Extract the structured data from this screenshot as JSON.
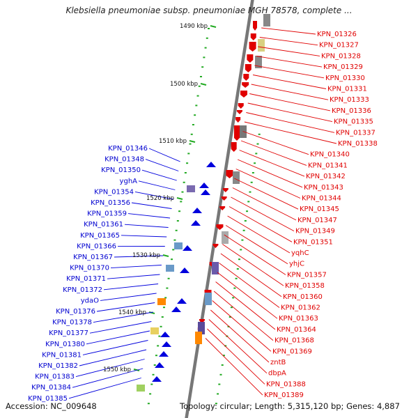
{
  "title": "Klebsiella pneumoniae subsp. pneumoniae MGH 78578, complete ...",
  "footer": {
    "accession": "Accession: NC_009648",
    "summary": "Topology: circular; Length: 5,315,120 bp; Genes: 4,887"
  },
  "colors": {
    "forward": "#e00000",
    "reverse": "#0000dd",
    "tick": "#22aa22",
    "backbone": "#777777"
  },
  "scale_labels": [
    "1490 kbp",
    "1500 kbp",
    "1510 kbp",
    "1520 kbp",
    "1530 kbp",
    "1540 kbp",
    "1550 kbp"
  ],
  "right_labels": [
    "KPN_01326",
    "KPN_01327",
    "KPN_01328",
    "KPN_01329",
    "KPN_01330",
    "KPN_01331",
    "KPN_01333",
    "KPN_01336",
    "KPN_01335",
    "KPN_01337",
    "KPN_01338",
    "KPN_01340",
    "KPN_01341",
    "KPN_01342",
    "KPN_01343",
    "KPN_01344",
    "KPN_01345",
    "KPN_01347",
    "KPN_01349",
    "KPN_01351",
    "yqhC",
    "yhjC",
    "KPN_01357",
    "KPN_01358",
    "KPN_01360",
    "KPN_01362",
    "KPN_01363",
    "KPN_01364",
    "KPN_01368",
    "KPN_01369",
    "zntB",
    "dbpA",
    "KPN_01388",
    "KPN_01389"
  ],
  "left_labels": [
    "KPN_01346",
    "KPN_01348",
    "KPN_01350",
    "yghA",
    "KPN_01354",
    "KPN_01356",
    "KPN_01359",
    "KPN_01361",
    "KPN_01365",
    "KPN_01366",
    "KPN_01367",
    "KPN_01370",
    "KPN_01371",
    "KPN_01372",
    "ydaO",
    "KPN_01376",
    "KPN_01378",
    "KPN_01377",
    "KPN_01380",
    "KPN_01381",
    "KPN_01382",
    "KPN_01383",
    "KPN_01384",
    "KPN_01385"
  ]
}
